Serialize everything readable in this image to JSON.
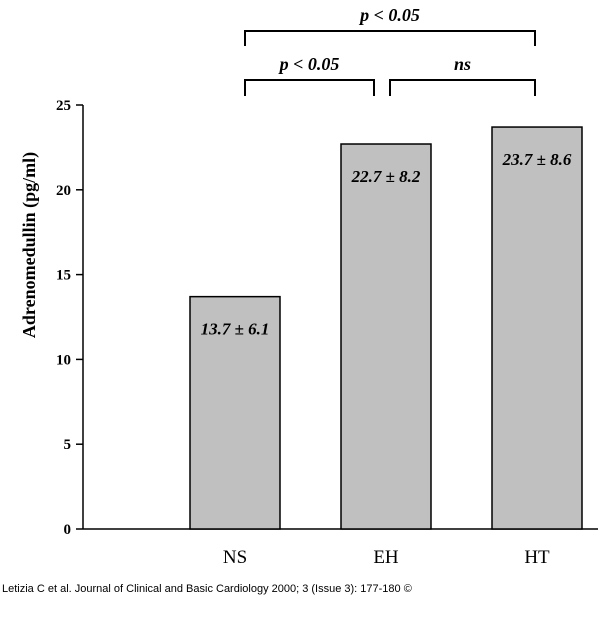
{
  "chart_data": {
    "type": "bar",
    "categories": [
      "NS",
      "EH",
      "HT"
    ],
    "values": [
      13.7,
      22.7,
      23.7
    ],
    "value_labels": [
      "13.7 ± 6.1",
      "22.7 ± 8.2",
      "23.7 ± 8.6"
    ],
    "ylabel": "Adrenomedullin (pg/ml)",
    "ylim": [
      0,
      25
    ],
    "yticks": [
      0,
      5,
      10,
      15,
      20,
      25
    ],
    "bar_color": "#c0c0c0",
    "grid": false,
    "significance": [
      {
        "from": 0,
        "to": 1,
        "label": "p < 0.05"
      },
      {
        "from": 1,
        "to": 2,
        "label": "ns"
      },
      {
        "from": 0,
        "to": 2,
        "label": "p < 0.05"
      }
    ]
  },
  "citation": "Letizia C et al. Journal of Clinical and Basic Cardiology 2000; 3 (Issue 3): 177-180 ©"
}
